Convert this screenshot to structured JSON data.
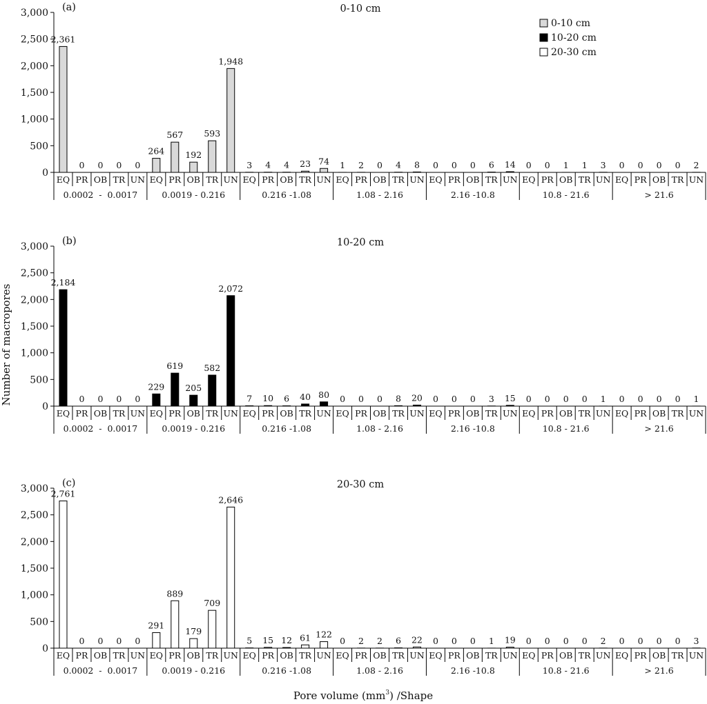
{
  "figure": {
    "ylabel": "Number of macropores",
    "xlabel_main": "Pore volume (mm",
    "xlabel_sup": "3",
    "xlabel_tail": ") /Shape"
  },
  "legend": {
    "placement": "top-right",
    "items": [
      {
        "label": "0-10 cm",
        "color": "#d9d9d9"
      },
      {
        "label": "10-20 cm",
        "color": "#000000"
      },
      {
        "label": "20-30 cm",
        "color": "#ffffff"
      }
    ]
  },
  "chart_data": [
    {
      "type": "bar",
      "panel_label": "(a)",
      "title": "0-10 cm",
      "fill": "#d9d9d9",
      "ylim": [
        0,
        3000
      ],
      "yticks": [
        0,
        500,
        1000,
        1500,
        2000,
        2500,
        3000
      ],
      "ytick_labels": [
        "0",
        "500",
        "1,000",
        "1,500",
        "2,000",
        "2,500",
        "3,000"
      ],
      "categories": [
        "EQ",
        "PR",
        "OB",
        "TR",
        "UN",
        "EQ",
        "PR",
        "OB",
        "TR",
        "UN",
        "EQ",
        "PR",
        "OB",
        "TR",
        "UN",
        "EQ",
        "PR",
        "OB",
        "TR",
        "UN",
        "EQ",
        "PR",
        "OB",
        "TR",
        "UN",
        "EQ",
        "PR",
        "OB",
        "TR",
        "UN",
        "EQ",
        "PR",
        "OB",
        "TR",
        "UN"
      ],
      "groups": [
        "0.0002  -  0.0017",
        "0.0019 - 0.216",
        "0.216 -1.08",
        "1.08 - 2.16",
        "2.16 -10.8",
        "10.8 - 21.6",
        "> 21.6"
      ],
      "values": [
        2361,
        0,
        0,
        0,
        0,
        264,
        567,
        192,
        593,
        1948,
        3,
        4,
        4,
        23,
        74,
        1,
        2,
        0,
        4,
        8,
        0,
        0,
        0,
        6,
        14,
        0,
        0,
        1,
        1,
        3,
        0,
        0,
        0,
        0,
        2
      ],
      "value_labels": [
        "2,361",
        "0",
        "0",
        "0",
        "0",
        "264",
        "567",
        "192",
        "593",
        "1,948",
        "3",
        "4",
        "4",
        "23",
        "74",
        "1",
        "2",
        "0",
        "4",
        "8",
        "0",
        "0",
        "0",
        "6",
        "14",
        "0",
        "0",
        "1",
        "1",
        "3",
        "0",
        "0",
        "0",
        "0",
        "2"
      ]
    },
    {
      "type": "bar",
      "panel_label": "(b)",
      "title": "10-20 cm",
      "fill": "#000000",
      "ylim": [
        0,
        3000
      ],
      "yticks": [
        0,
        500,
        1000,
        1500,
        2000,
        2500,
        3000
      ],
      "ytick_labels": [
        "0",
        "500",
        "1,000",
        "1,500",
        "2,000",
        "2,500",
        "3,000"
      ],
      "categories": [
        "EQ",
        "PR",
        "OB",
        "TR",
        "UN",
        "EQ",
        "PR",
        "OB",
        "TR",
        "UN",
        "EQ",
        "PR",
        "OB",
        "TR",
        "UN",
        "EQ",
        "PR",
        "OB",
        "TR",
        "UN",
        "EQ",
        "PR",
        "OB",
        "TR",
        "UN",
        "EQ",
        "PR",
        "OB",
        "TR",
        "UN",
        "EQ",
        "PR",
        "OB",
        "TR",
        "UN"
      ],
      "groups": [
        "0.0002  -  0.0017",
        "0.0019 - 0.216",
        "0.216 -1.08",
        "1.08 - 2.16",
        "2.16 -10.8",
        "10.8 - 21.6",
        "> 21.6"
      ],
      "values": [
        2184,
        0,
        0,
        0,
        0,
        229,
        619,
        205,
        582,
        2072,
        7,
        10,
        6,
        40,
        80,
        0,
        0,
        0,
        8,
        20,
        0,
        0,
        0,
        3,
        15,
        0,
        0,
        0,
        0,
        1,
        0,
        0,
        0,
        0,
        1
      ],
      "value_labels": [
        "2,184",
        "0",
        "0",
        "0",
        "0",
        "229",
        "619",
        "205",
        "582",
        "2,072",
        "7",
        "10",
        "6",
        "40",
        "80",
        "0",
        "0",
        "0",
        "8",
        "20",
        "0",
        "0",
        "0",
        "3",
        "15",
        "0",
        "0",
        "0",
        "0",
        "1",
        "0",
        "0",
        "0",
        "0",
        "1"
      ]
    },
    {
      "type": "bar",
      "panel_label": "(c)",
      "title": "20-30 cm",
      "fill": "#ffffff",
      "ylim": [
        0,
        3000
      ],
      "yticks": [
        0,
        500,
        1000,
        1500,
        2000,
        2500,
        3000
      ],
      "ytick_labels": [
        "0",
        "500",
        "1,000",
        "1,500",
        "2,000",
        "2,500",
        "3,000"
      ],
      "categories": [
        "EQ",
        "PR",
        "OB",
        "TR",
        "UN",
        "EQ",
        "PR",
        "OB",
        "TR",
        "UN",
        "EQ",
        "PR",
        "OB",
        "TR",
        "UN",
        "EQ",
        "PR",
        "OB",
        "TR",
        "UN",
        "EQ",
        "PR",
        "OB",
        "TR",
        "UN",
        "EQ",
        "PR",
        "OB",
        "TR",
        "UN",
        "EQ",
        "PR",
        "OB",
        "TR",
        "UN"
      ],
      "groups": [
        "0.0002  -  0.0017",
        "0.0019 - 0.216",
        "0.216 -1.08",
        "1.08 - 2.16",
        "2.16 -10.8",
        "10.8 - 21.6",
        "> 21.6"
      ],
      "values": [
        2761,
        0,
        0,
        0,
        0,
        291,
        889,
        179,
        709,
        2646,
        5,
        15,
        12,
        61,
        122,
        0,
        2,
        2,
        6,
        22,
        0,
        0,
        0,
        1,
        19,
        0,
        0,
        0,
        0,
        2,
        0,
        0,
        0,
        0,
        3
      ],
      "value_labels": [
        "2,761",
        "0",
        "0",
        "0",
        "0",
        "291",
        "889",
        "179",
        "709",
        "2,646",
        "5",
        "15",
        "12",
        "61",
        "122",
        "0",
        "2",
        "2",
        "6",
        "22",
        "0",
        "0",
        "0",
        "1",
        "19",
        "0",
        "0",
        "0",
        "0",
        "2",
        "0",
        "0",
        "0",
        "0",
        "3"
      ]
    }
  ]
}
